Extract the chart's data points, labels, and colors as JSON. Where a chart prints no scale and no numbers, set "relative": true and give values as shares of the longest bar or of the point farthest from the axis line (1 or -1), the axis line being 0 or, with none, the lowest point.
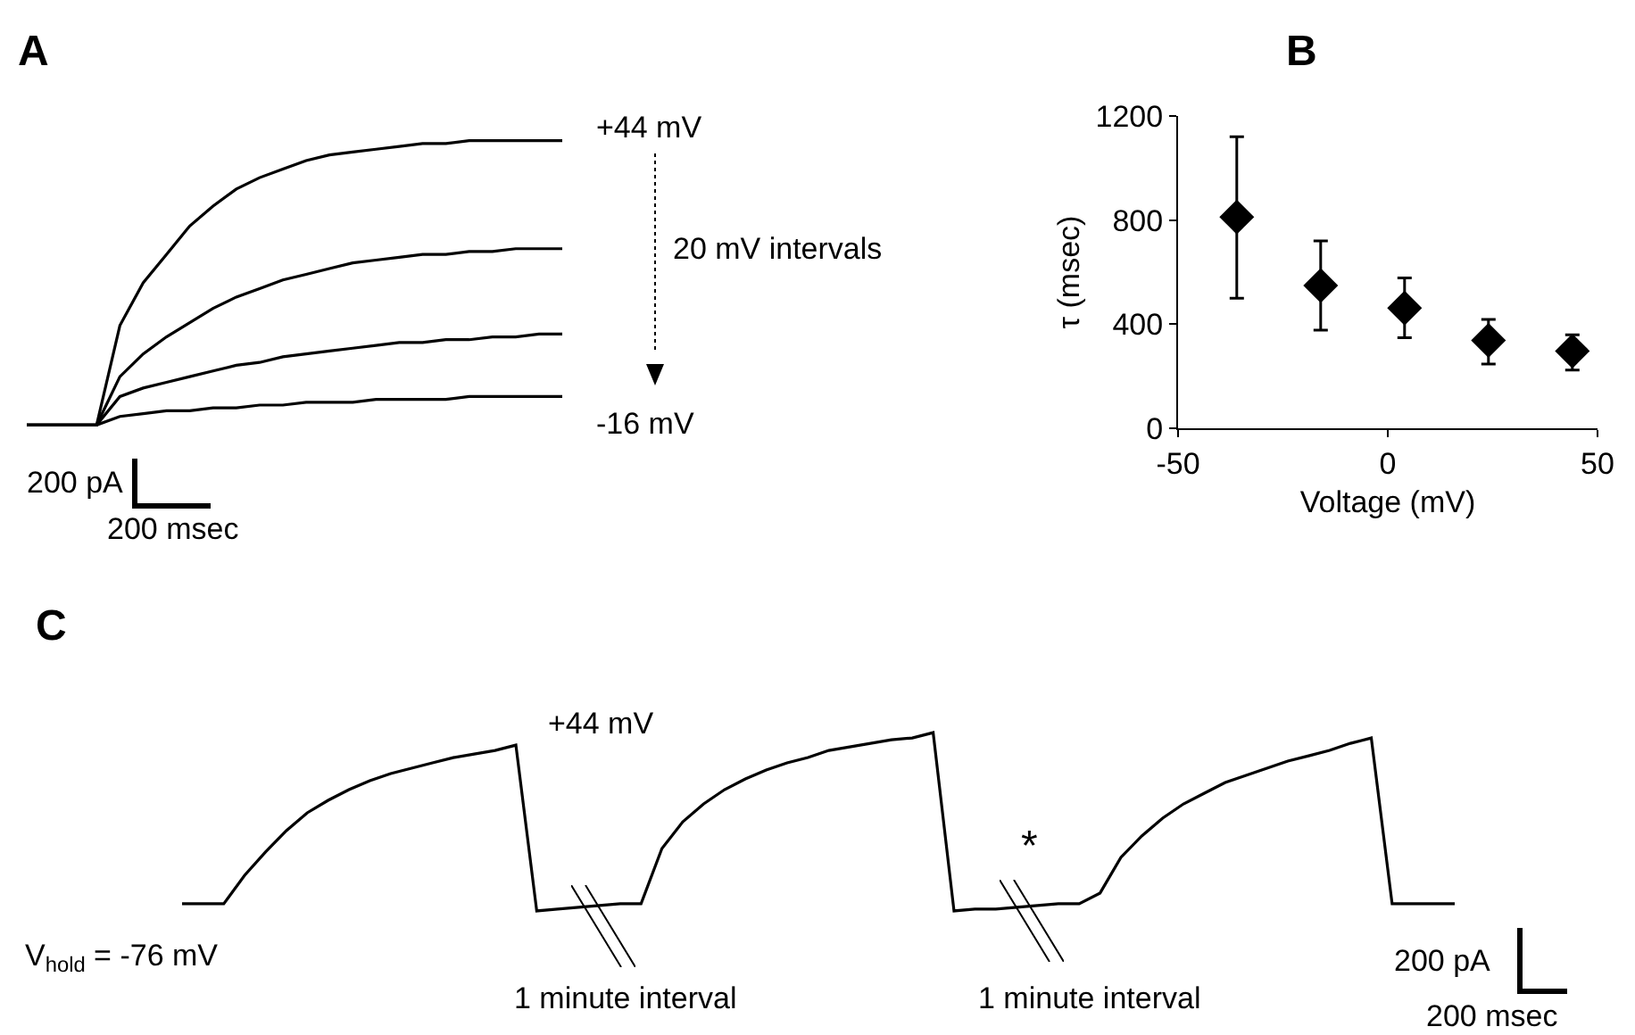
{
  "chart_data": [
    {
      "type": "line",
      "title": "A",
      "relative": true,
      "categories": [
        null,
        null,
        null,
        null,
        null,
        null,
        null,
        null,
        null,
        null,
        null,
        null,
        null,
        null,
        null,
        null,
        null,
        null,
        null,
        null,
        null,
        null,
        null,
        null
      ],
      "series": [
        {
          "color": "#000000",
          "values": [
            0,
            0,
            0,
            0,
            0.35,
            0.5,
            0.6,
            0.7,
            0.77,
            0.83,
            0.87,
            0.9,
            0.93,
            0.95,
            0.96,
            0.97,
            0.98,
            0.99,
            0.99,
            1,
            1,
            1,
            1,
            1
          ]
        },
        {
          "color": "#000000",
          "values": [
            0,
            0,
            0,
            0,
            0.17,
            0.25,
            0.31,
            0.36,
            0.41,
            0.45,
            0.48,
            0.51,
            0.53,
            0.55,
            0.57,
            0.58,
            0.59,
            0.6,
            0.6,
            0.61,
            0.61,
            0.62,
            0.62,
            0.62
          ]
        },
        {
          "color": "#000000",
          "values": [
            0,
            0,
            0,
            0,
            0.1,
            0.13,
            0.15,
            0.17,
            0.19,
            0.21,
            0.22,
            0.24,
            0.25,
            0.26,
            0.27,
            0.28,
            0.29,
            0.29,
            0.3,
            0.3,
            0.31,
            0.31,
            0.32,
            0.32
          ]
        },
        {
          "color": "#000000",
          "values": [
            0,
            0,
            0,
            0,
            0.03,
            0.04,
            0.05,
            0.05,
            0.06,
            0.06,
            0.07,
            0.07,
            0.08,
            0.08,
            0.08,
            0.09,
            0.09,
            0.09,
            0.09,
            0.1,
            0.1,
            0.1,
            0.1,
            0.1
          ]
        }
      ],
      "annotations": [
        "+44 mV",
        "20 mV intervals",
        "-16 mV",
        "200 pA",
        "200 msec"
      ]
    },
    {
      "type": "scatter",
      "title": "B",
      "xlabel": "Voltage (mV)",
      "ylabel": "τ (msec)",
      "x": [
        -36,
        -16,
        4,
        24,
        44
      ],
      "values": [
        812,
        549,
        462,
        338,
        297
      ],
      "errors": [
        [
          500,
          1120
        ],
        [
          377,
          720
        ],
        [
          348,
          578
        ],
        [
          247,
          418
        ],
        [
          224,
          359
        ]
      ],
      "color": "#000000",
      "marker": "diamond",
      "xlim": [
        -50,
        50
      ],
      "xticks": [
        -50,
        0,
        50
      ],
      "ylim": [
        0,
        1200
      ],
      "yticks": [
        0,
        400,
        800,
        1200
      ]
    },
    {
      "type": "line",
      "title": "C",
      "relative": true,
      "categories": [
        null,
        null,
        null,
        null,
        null,
        null,
        null,
        null,
        null,
        null,
        null,
        null,
        null,
        null,
        null,
        null,
        null,
        null,
        null,
        null,
        null,
        null,
        null,
        null,
        null,
        null,
        null,
        null,
        null,
        null,
        null,
        null,
        null,
        null,
        null,
        null,
        null,
        null,
        null,
        null,
        null,
        null,
        null,
        null,
        null,
        null,
        null,
        null,
        null,
        null,
        null,
        null,
        null,
        null,
        null,
        null,
        null,
        null,
        null,
        null,
        null,
        null
      ],
      "series": [
        {
          "color": "#000000",
          "values": [
            0.04,
            0.04,
            0.04,
            0.2,
            0.33,
            0.45,
            0.55,
            0.62,
            0.68,
            0.73,
            0.77,
            0.8,
            0.83,
            0.86,
            0.88,
            0.9,
            0.93,
            0,
            0.01,
            0.02,
            0.03,
            0.04,
            0.04,
            0.35,
            0.5,
            0.6,
            0.68,
            0.74,
            0.79,
            0.83,
            0.86,
            0.9,
            0.92,
            0.94,
            0.96,
            0.97,
            1,
            0,
            0.01,
            0.01,
            0.02,
            0.03,
            0.04,
            0.04,
            0.1,
            0.3,
            0.42,
            0.52,
            0.6,
            0.66,
            0.72,
            0.76,
            0.8,
            0.84,
            0.87,
            0.9,
            0.94,
            0.97,
            0.04,
            0.04,
            0.04,
            0.04
          ]
        }
      ],
      "annotations": [
        "+44 mV",
        "V$_{hold}$ = -76 mV",
        "1 minute interval",
        "1 minute interval",
        "*",
        "200 pA",
        "200 msec"
      ]
    }
  ]
}
